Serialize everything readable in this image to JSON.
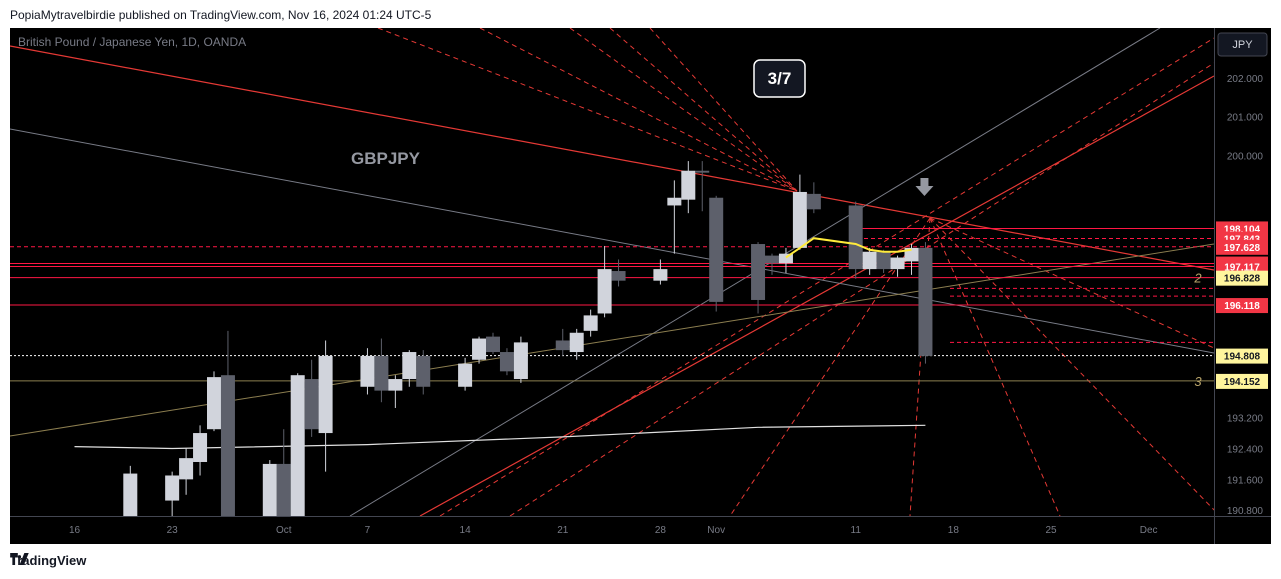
{
  "header": {
    "published": "PopiaMytravelbirdie published on TradingView.com, Nov 16, 2024 01:24 UTC-5"
  },
  "footer": {
    "brand": "TradingView"
  },
  "colors": {
    "bull": "#d1d4dc",
    "bear": "#5d606b",
    "price_line": "#ff1744",
    "ema": "#ffeb3b",
    "sma": "#e0e0e0",
    "axis_text": "#787b86"
  },
  "chart_data": {
    "type": "candlestick",
    "symbol_label": "British Pound / Japanese Yen, 1D, OANDA",
    "watermark": "GBPJPY",
    "badge": "3/7",
    "currency": "JPY",
    "ylim": [
      190.65,
      203.3
    ],
    "y_ticks": [
      "202.000",
      "201.000",
      "200.000",
      "193.200",
      "192.400",
      "191.600",
      "190.800"
    ],
    "x_ticks": [
      {
        "label": "16",
        "date": "2024-09-16"
      },
      {
        "label": "23",
        "date": "2024-09-23"
      },
      {
        "label": "Oct",
        "date": "2024-10-01"
      },
      {
        "label": "7",
        "date": "2024-10-07"
      },
      {
        "label": "14",
        "date": "2024-10-14"
      },
      {
        "label": "21",
        "date": "2024-10-21"
      },
      {
        "label": "28",
        "date": "2024-10-28"
      },
      {
        "label": "Nov",
        "date": "2024-11-01"
      },
      {
        "label": "11",
        "date": "2024-11-11"
      },
      {
        "label": "18",
        "date": "2024-11-18"
      },
      {
        "label": "25",
        "date": "2024-11-25"
      },
      {
        "label": "Dec",
        "date": "2024-12-02"
      }
    ],
    "price_labels": [
      {
        "value": "198.104",
        "style": "red"
      },
      {
        "value": "197.843",
        "style": "red"
      },
      {
        "value": "197.628",
        "style": "red"
      },
      {
        "value": "197.194",
        "style": "red"
      },
      {
        "value": "197.117",
        "style": "red"
      },
      {
        "value": "196.828",
        "style": "yellow"
      },
      {
        "value": "196.118",
        "style": "red"
      },
      {
        "value": "194.808",
        "style": "yellow"
      },
      {
        "value": "194.152",
        "style": "yellow"
      }
    ],
    "level_marks": [
      {
        "text": "2",
        "price": 196.83
      },
      {
        "text": "3",
        "price": 194.15
      }
    ],
    "candles": [
      {
        "date": "2024-09-20",
        "o": 190.65,
        "h": 191.95,
        "l": 190.65,
        "c": 191.75
      },
      {
        "date": "2024-09-23",
        "o": 191.05,
        "h": 191.8,
        "l": 190.65,
        "c": 191.7
      },
      {
        "date": "2024-09-24",
        "o": 191.6,
        "h": 192.4,
        "l": 191.2,
        "c": 192.15
      },
      {
        "date": "2024-09-25",
        "o": 192.05,
        "h": 193.0,
        "l": 191.7,
        "c": 192.8
      },
      {
        "date": "2024-09-26",
        "o": 192.9,
        "h": 194.4,
        "l": 192.85,
        "c": 194.25
      },
      {
        "date": "2024-09-27",
        "o": 194.3,
        "h": 195.45,
        "l": 190.65,
        "c": 190.65
      },
      {
        "date": "2024-09-30",
        "o": 190.65,
        "h": 192.1,
        "l": 190.65,
        "c": 192.0
      },
      {
        "date": "2024-10-01",
        "o": 192.0,
        "h": 192.9,
        "l": 190.65,
        "c": 190.65
      },
      {
        "date": "2024-10-02",
        "o": 190.65,
        "h": 194.35,
        "l": 190.65,
        "c": 194.3
      },
      {
        "date": "2024-10-03",
        "o": 194.2,
        "h": 194.7,
        "l": 192.7,
        "c": 192.9
      },
      {
        "date": "2024-10-04",
        "o": 192.8,
        "h": 195.2,
        "l": 191.8,
        "c": 194.8
      },
      {
        "date": "2024-10-07",
        "o": 194.0,
        "h": 195.0,
        "l": 193.8,
        "c": 194.8
      },
      {
        "date": "2024-10-08",
        "o": 194.8,
        "h": 195.25,
        "l": 193.6,
        "c": 193.9
      },
      {
        "date": "2024-10-09",
        "o": 193.9,
        "h": 194.3,
        "l": 193.45,
        "c": 194.2
      },
      {
        "date": "2024-10-10",
        "o": 194.2,
        "h": 194.95,
        "l": 194.0,
        "c": 194.9
      },
      {
        "date": "2024-10-11",
        "o": 194.8,
        "h": 194.95,
        "l": 193.8,
        "c": 194.0
      },
      {
        "date": "2024-10-14",
        "o": 194.0,
        "h": 194.75,
        "l": 193.9,
        "c": 194.6
      },
      {
        "date": "2024-10-15",
        "o": 194.7,
        "h": 195.3,
        "l": 194.6,
        "c": 195.25
      },
      {
        "date": "2024-10-16",
        "o": 195.3,
        "h": 195.4,
        "l": 194.85,
        "c": 194.9
      },
      {
        "date": "2024-10-17",
        "o": 194.9,
        "h": 195.0,
        "l": 194.3,
        "c": 194.4
      },
      {
        "date": "2024-10-18",
        "o": 194.2,
        "h": 195.3,
        "l": 194.1,
        "c": 195.15
      },
      {
        "date": "2024-10-21",
        "o": 195.2,
        "h": 195.5,
        "l": 194.8,
        "c": 194.95
      },
      {
        "date": "2024-10-22",
        "o": 194.9,
        "h": 195.5,
        "l": 194.7,
        "c": 195.4
      },
      {
        "date": "2024-10-23",
        "o": 195.45,
        "h": 196.0,
        "l": 195.3,
        "c": 195.85
      },
      {
        "date": "2024-10-24",
        "o": 195.9,
        "h": 197.65,
        "l": 195.8,
        "c": 197.05
      },
      {
        "date": "2024-10-25",
        "o": 197.0,
        "h": 197.3,
        "l": 196.6,
        "c": 196.75
      },
      {
        "date": "2024-10-28",
        "o": 196.75,
        "h": 197.3,
        "l": 196.65,
        "c": 197.05
      },
      {
        "date": "2024-10-29",
        "o": 198.7,
        "h": 199.35,
        "l": 197.45,
        "c": 198.9
      },
      {
        "date": "2024-10-30",
        "o": 198.85,
        "h": 199.85,
        "l": 198.5,
        "c": 199.6
      },
      {
        "date": "2024-10-31",
        "o": 199.6,
        "h": 199.85,
        "l": 198.55,
        "c": 199.55
      },
      {
        "date": "2024-11-01",
        "o": 198.9,
        "h": 198.95,
        "l": 195.95,
        "c": 196.2
      },
      {
        "date": "2024-11-04",
        "o": 197.7,
        "h": 197.75,
        "l": 195.9,
        "c": 196.25
      },
      {
        "date": "2024-11-05",
        "o": 197.4,
        "h": 197.45,
        "l": 196.9,
        "c": 197.2
      },
      {
        "date": "2024-11-06",
        "o": 197.2,
        "h": 197.6,
        "l": 196.95,
        "c": 197.45
      },
      {
        "date": "2024-11-07",
        "o": 197.6,
        "h": 199.5,
        "l": 197.55,
        "c": 199.05
      },
      {
        "date": "2024-11-08",
        "o": 199.0,
        "h": 199.3,
        "l": 198.5,
        "c": 198.6
      },
      {
        "date": "2024-11-11",
        "o": 198.7,
        "h": 198.8,
        "l": 196.8,
        "c": 197.05
      },
      {
        "date": "2024-11-12",
        "o": 197.05,
        "h": 197.6,
        "l": 196.9,
        "c": 197.5
      },
      {
        "date": "2024-11-13",
        "o": 197.5,
        "h": 197.55,
        "l": 196.95,
        "c": 197.05
      },
      {
        "date": "2024-11-14",
        "o": 197.05,
        "h": 197.4,
        "l": 196.85,
        "c": 197.35
      },
      {
        "date": "2024-11-15",
        "o": 197.25,
        "h": 197.7,
        "l": 196.9,
        "c": 197.6
      },
      {
        "date": "2024-11-16",
        "o": 197.6,
        "h": 197.75,
        "l": 194.6,
        "c": 194.8
      }
    ],
    "ema": [
      {
        "date": "2024-11-06",
        "v": 197.35
      },
      {
        "date": "2024-11-07",
        "v": 197.6
      },
      {
        "date": "2024-11-08",
        "v": 197.85
      },
      {
        "date": "2024-11-11",
        "v": 197.7
      },
      {
        "date": "2024-11-12",
        "v": 197.55
      },
      {
        "date": "2024-11-13",
        "v": 197.5
      },
      {
        "date": "2024-11-14",
        "v": 197.5
      },
      {
        "date": "2024-11-15",
        "v": 197.55
      }
    ],
    "sma": [
      {
        "date": "2024-09-16",
        "v": 192.45
      },
      {
        "date": "2024-09-23",
        "v": 192.4
      },
      {
        "date": "2024-10-07",
        "v": 192.5
      },
      {
        "date": "2024-10-21",
        "v": 192.7
      },
      {
        "date": "2024-11-04",
        "v": 192.95
      },
      {
        "date": "2024-11-16",
        "v": 193.0
      }
    ]
  }
}
